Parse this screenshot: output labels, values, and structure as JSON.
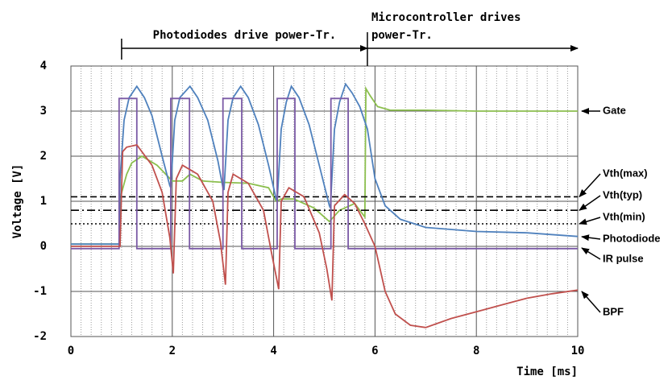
{
  "chart_data": {
    "type": "line",
    "xlabel": "Time [ms]",
    "ylabel": "Voltage [V]",
    "xlim": [
      0,
      10
    ],
    "xticks": [
      0,
      2,
      4,
      6,
      8,
      10
    ],
    "xminorticks": [
      0.2,
      0.4,
      0.6,
      0.8,
      1,
      1.2,
      1.4,
      1.6,
      1.8,
      2.2,
      2.4,
      2.6,
      2.8,
      3,
      3.2,
      3.4,
      3.6,
      3.8,
      4.2,
      4.4,
      4.6,
      4.8,
      5,
      5.2,
      5.4,
      5.6,
      5.8,
      6.2,
      6.4,
      6.6,
      6.8,
      7,
      7.2,
      7.4,
      7.6,
      7.8,
      8.2,
      8.4,
      8.6,
      8.8,
      9,
      9.2,
      9.4,
      9.6,
      9.8
    ],
    "ylim": [
      -2,
      4
    ],
    "yticks": [
      -2,
      -1,
      0,
      1,
      2,
      3,
      4
    ],
    "grid": true,
    "annotations": [
      {
        "lines": [
          "Photodiodes drive power-Tr."
        ],
        "x": [
          1,
          5.85
        ]
      },
      {
        "lines": [
          "Microcontroller drives",
          "power-Tr."
        ],
        "x": [
          5.85,
          10
        ]
      }
    ],
    "series": [
      {
        "name": "Gate",
        "color": "#8cbf4e",
        "dash": "solid",
        "x": [
          0,
          0.97,
          0.98,
          1.1,
          1.2,
          1.4,
          1.7,
          2.0,
          2.2,
          2.35,
          2.6,
          3.0,
          3.5,
          3.9,
          4.05,
          4.15,
          4.4,
          4.8,
          5.1,
          5.3,
          5.6,
          5.8,
          5.82,
          5.9,
          6.05,
          6.3,
          7,
          8,
          9,
          10
        ],
        "values": [
          0.05,
          0.05,
          1.1,
          1.6,
          1.85,
          2.0,
          1.8,
          1.45,
          1.45,
          1.6,
          1.45,
          1.42,
          1.4,
          1.3,
          1.0,
          1.05,
          1.05,
          0.85,
          0.55,
          0.8,
          0.95,
          0.65,
          3.5,
          3.35,
          3.1,
          3.02,
          3.02,
          3.0,
          3.0,
          3.0
        ]
      },
      {
        "name": "Vth(max)",
        "color": "#000000",
        "dash": "dashed",
        "x": [
          0,
          10
        ],
        "values": [
          1.1,
          1.1
        ]
      },
      {
        "name": "Vth(typ)",
        "color": "#000000",
        "dash": "dashdot",
        "x": [
          0,
          10
        ],
        "values": [
          0.8,
          0.8
        ]
      },
      {
        "name": "Vth(min)",
        "color": "#000000",
        "dash": "dotted",
        "x": [
          0,
          10
        ],
        "values": [
          0.5,
          0.5
        ]
      },
      {
        "name": "Photodiode",
        "color": "#4f81bd",
        "dash": "solid",
        "x": [
          0,
          0.95,
          0.97,
          1.05,
          1.15,
          1.3,
          1.45,
          1.6,
          1.8,
          1.95,
          1.97,
          2.05,
          2.15,
          2.35,
          2.5,
          2.7,
          2.9,
          3.0,
          3.02,
          3.1,
          3.2,
          3.35,
          3.5,
          3.7,
          3.9,
          4.05,
          4.07,
          4.15,
          4.25,
          4.35,
          4.5,
          4.7,
          4.9,
          5.1,
          5.12,
          5.2,
          5.3,
          5.42,
          5.55,
          5.7,
          5.85,
          6.0,
          6.2,
          6.5,
          7.0,
          8.0,
          9.0,
          10
        ],
        "values": [
          0.05,
          0.05,
          1.5,
          2.8,
          3.3,
          3.55,
          3.3,
          2.9,
          2.0,
          1.35,
          1.3,
          2.8,
          3.3,
          3.55,
          3.3,
          2.8,
          1.9,
          1.3,
          1.25,
          2.8,
          3.3,
          3.55,
          3.3,
          2.7,
          1.8,
          1.05,
          1.0,
          2.6,
          3.2,
          3.55,
          3.3,
          2.7,
          1.8,
          0.9,
          0.85,
          2.6,
          3.2,
          3.6,
          3.4,
          3.1,
          2.6,
          1.5,
          0.9,
          0.6,
          0.42,
          0.33,
          0.3,
          0.22
        ]
      },
      {
        "name": "IR pulse",
        "color": "#7b5aa6",
        "dash": "solid",
        "x": [
          0,
          0.95,
          0.95,
          1.3,
          1.3,
          1.97,
          1.97,
          2.34,
          2.34,
          3.0,
          3.0,
          3.37,
          3.37,
          4.07,
          4.07,
          4.42,
          4.42,
          5.13,
          5.13,
          5.47,
          5.47,
          10
        ],
        "values": [
          -0.05,
          -0.05,
          3.28,
          3.28,
          -0.05,
          -0.05,
          3.28,
          3.28,
          -0.05,
          -0.05,
          3.28,
          3.28,
          -0.05,
          -0.05,
          3.28,
          3.28,
          -0.05,
          -0.05,
          3.28,
          3.28,
          -0.05,
          -0.05
        ]
      },
      {
        "name": "BPF",
        "color": "#c0504d",
        "dash": "solid",
        "x": [
          0,
          0.97,
          1.02,
          1.1,
          1.3,
          1.6,
          1.8,
          1.95,
          2.02,
          2.08,
          2.2,
          2.5,
          2.8,
          2.95,
          3.05,
          3.1,
          3.2,
          3.5,
          3.8,
          3.95,
          4.1,
          4.15,
          4.3,
          4.6,
          4.9,
          5.05,
          5.15,
          5.2,
          5.4,
          5.6,
          5.8,
          6.0,
          6.2,
          6.4,
          6.7,
          7.0,
          7.5,
          8.0,
          8.5,
          9.0,
          9.5,
          10
        ],
        "values": [
          0,
          0,
          2.1,
          2.2,
          2.25,
          1.8,
          1.2,
          0.2,
          -0.6,
          1.5,
          1.8,
          1.6,
          1.0,
          0.1,
          -0.85,
          1.2,
          1.6,
          1.4,
          0.8,
          -0.1,
          -0.95,
          1.0,
          1.3,
          1.1,
          0.3,
          -0.5,
          -1.2,
          0.9,
          1.15,
          0.95,
          0.5,
          0.0,
          -1.0,
          -1.5,
          -1.75,
          -1.8,
          -1.6,
          -1.45,
          -1.3,
          -1.15,
          -1.05,
          -0.97
        ]
      }
    ]
  }
}
